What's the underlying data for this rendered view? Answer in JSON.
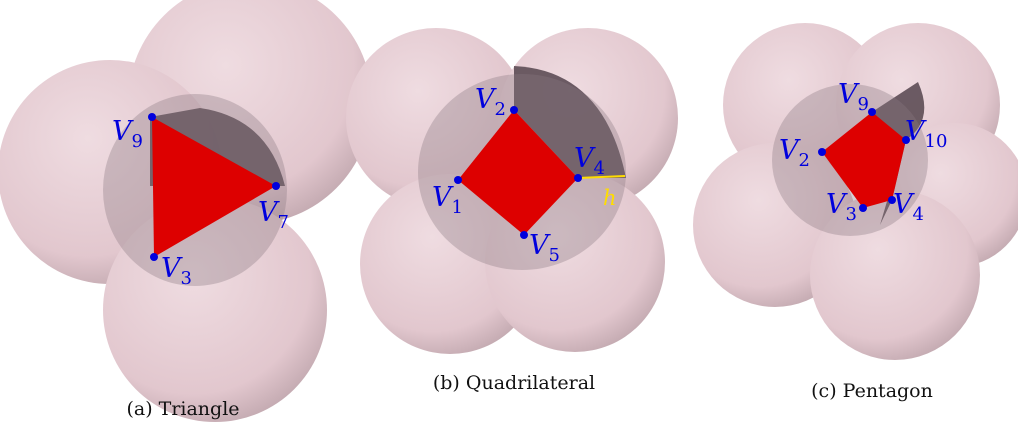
{
  "panels": [
    {
      "caption": "(a) Triangle",
      "vertices": [
        {
          "base": "V",
          "sub": "9"
        },
        {
          "base": "V",
          "sub": "7"
        },
        {
          "base": "V",
          "sub": "3"
        }
      ]
    },
    {
      "caption": "(b) Quadrilateral",
      "vertices": [
        {
          "base": "V",
          "sub": "2"
        },
        {
          "base": "V",
          "sub": "4"
        },
        {
          "base": "V",
          "sub": "1"
        },
        {
          "base": "V",
          "sub": "5"
        }
      ],
      "gap_label": "h"
    },
    {
      "caption": "(c) Pentagon",
      "vertices": [
        {
          "base": "V",
          "sub": "9"
        },
        {
          "base": "V",
          "sub": "10"
        },
        {
          "base": "V",
          "sub": "2"
        },
        {
          "base": "V",
          "sub": "3"
        },
        {
          "base": "V",
          "sub": "4"
        }
      ]
    }
  ],
  "colors": {
    "sphere": "#e6cdd3",
    "sphere_shadow": "#b0979d",
    "inner_dark": "#5f4f58",
    "inner_disk": "#7e6c74",
    "polygon": "#dd0000",
    "vertex": "#0000dd",
    "label": "#0000dd",
    "gap_line": "#ffdd00"
  }
}
